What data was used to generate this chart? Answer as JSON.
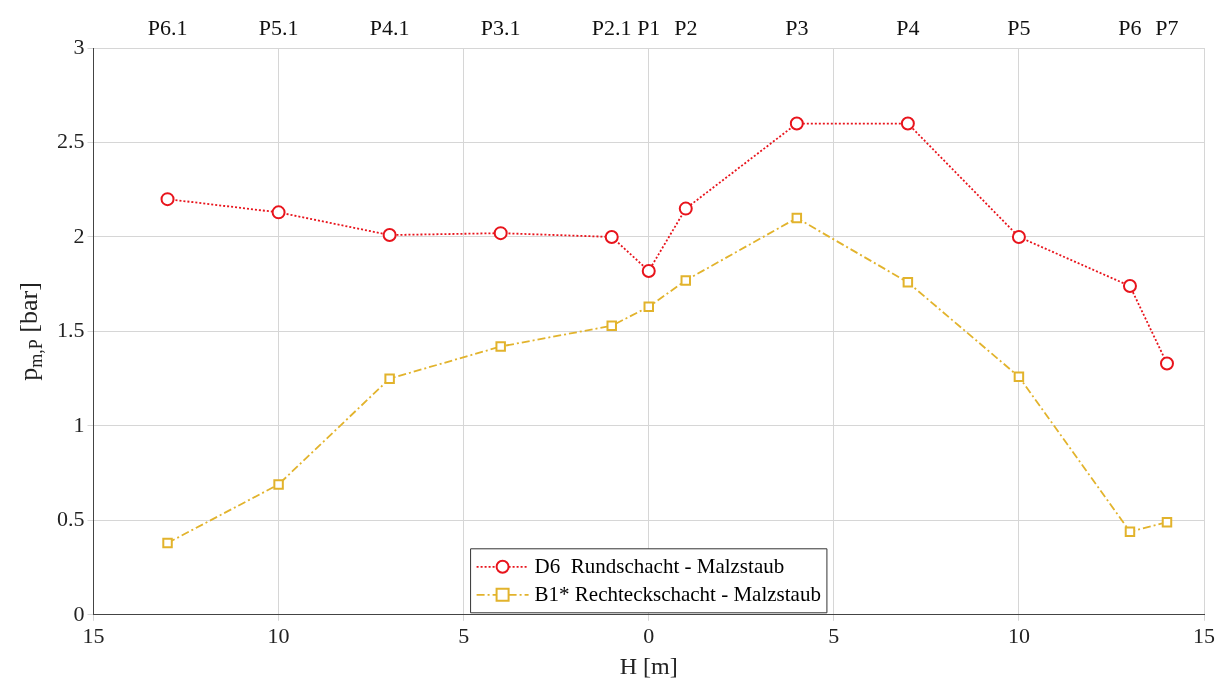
{
  "chart_data": {
    "type": "line",
    "xlabel": "H [m]",
    "ylabel": "p$_{m,P}$ [bar]",
    "x": [
      -13,
      -10,
      -7,
      -4,
      -1,
      0,
      1,
      4,
      7,
      10,
      13,
      14
    ],
    "series": [
      {
        "name": "D6  Rundschacht - Malzstaub",
        "color": "#e8141c",
        "marker": "circle",
        "line_style": "dotted",
        "values": [
          2.2,
          2.13,
          2.01,
          2.02,
          2.0,
          1.82,
          2.15,
          2.6,
          2.6,
          2.0,
          1.74,
          1.33
        ]
      },
      {
        "name": "B1* Rechteckschacht - Malzstaub",
        "color": "#e2b32c",
        "marker": "square",
        "line_style": "dashed",
        "values": [
          0.38,
          0.69,
          1.25,
          1.42,
          1.53,
          1.63,
          1.77,
          2.1,
          1.76,
          1.26,
          0.44,
          0.49
        ]
      }
    ],
    "xlim": [
      -15,
      15
    ],
    "xticks": [
      {
        "value": -15,
        "label": "15"
      },
      {
        "value": -10,
        "label": "10"
      },
      {
        "value": -5,
        "label": "5"
      },
      0,
      5,
      10,
      15
    ],
    "annotations": [
      "P6.1",
      "P5.1",
      "P4.1",
      "P3.1",
      "P2.1",
      "P1",
      "P2",
      "P3",
      "P4",
      "P5",
      "P6",
      "P7"
    ],
    "ylim": [
      0,
      3
    ],
    "yticks": [
      0,
      0.5,
      1,
      1.5,
      2,
      2.5,
      3
    ],
    "grid": true,
    "legend": "bottom"
  }
}
